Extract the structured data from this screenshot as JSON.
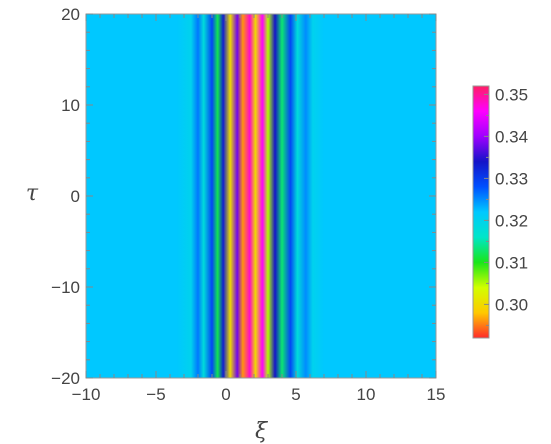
{
  "chart_data": {
    "type": "heatmap",
    "title": "",
    "xlabel": "ξ",
    "ylabel": "τ",
    "xlim": [
      -10,
      15
    ],
    "ylim": [
      -20,
      20
    ],
    "x_ticks": [
      {
        "value": -10,
        "label": "−10"
      },
      {
        "value": -5,
        "label": "−5"
      },
      {
        "value": 0,
        "label": "0"
      },
      {
        "value": 5,
        "label": "5"
      },
      {
        "value": 10,
        "label": "10"
      },
      {
        "value": 15,
        "label": "15"
      }
    ],
    "y_ticks": [
      {
        "value": -20,
        "label": "−20"
      },
      {
        "value": -10,
        "label": "−10"
      },
      {
        "value": 0,
        "label": "0"
      },
      {
        "value": 10,
        "label": "10"
      },
      {
        "value": 20,
        "label": "20"
      }
    ],
    "colorbar": {
      "range": [
        0.292,
        0.352
      ],
      "ticks": [
        {
          "value": 0.3,
          "label": "0.30"
        },
        {
          "value": 0.31,
          "label": "0.31"
        },
        {
          "value": 0.32,
          "label": "0.32"
        },
        {
          "value": 0.33,
          "label": "0.33"
        },
        {
          "value": 0.34,
          "label": "0.34"
        },
        {
          "value": 0.35,
          "label": "0.35"
        }
      ],
      "colors": [
        "#ff2a2a",
        "#ffc800",
        "#d2ff00",
        "#19e619",
        "#00e6c8",
        "#00c8ff",
        "#0050ff",
        "#1414c8",
        "#a000ff",
        "#ff00ff",
        "#ff1e64"
      ]
    },
    "background_value": 0.322,
    "profile": [
      {
        "xi": -3.5,
        "value": 0.322
      },
      {
        "xi": -2.5,
        "value": 0.32
      },
      {
        "xi": -2.0,
        "value": 0.326
      },
      {
        "xi": -1.6,
        "value": 0.318
      },
      {
        "xi": -1.0,
        "value": 0.329
      },
      {
        "xi": -0.6,
        "value": 0.312
      },
      {
        "xi": -0.2,
        "value": 0.333
      },
      {
        "xi": 0.3,
        "value": 0.3
      },
      {
        "xi": 0.8,
        "value": 0.338
      },
      {
        "xi": 1.2,
        "value": 0.296
      },
      {
        "xi": 1.7,
        "value": 0.348
      },
      {
        "xi": 2.1,
        "value": 0.3
      },
      {
        "xi": 2.6,
        "value": 0.346
      },
      {
        "xi": 3.0,
        "value": 0.305
      },
      {
        "xi": 3.5,
        "value": 0.334
      },
      {
        "xi": 4.0,
        "value": 0.313
      },
      {
        "xi": 4.6,
        "value": 0.329
      },
      {
        "xi": 5.1,
        "value": 0.318
      },
      {
        "xi": 5.7,
        "value": 0.325
      },
      {
        "xi": 6.2,
        "value": 0.32
      },
      {
        "xi": 7.0,
        "value": 0.322
      }
    ]
  }
}
